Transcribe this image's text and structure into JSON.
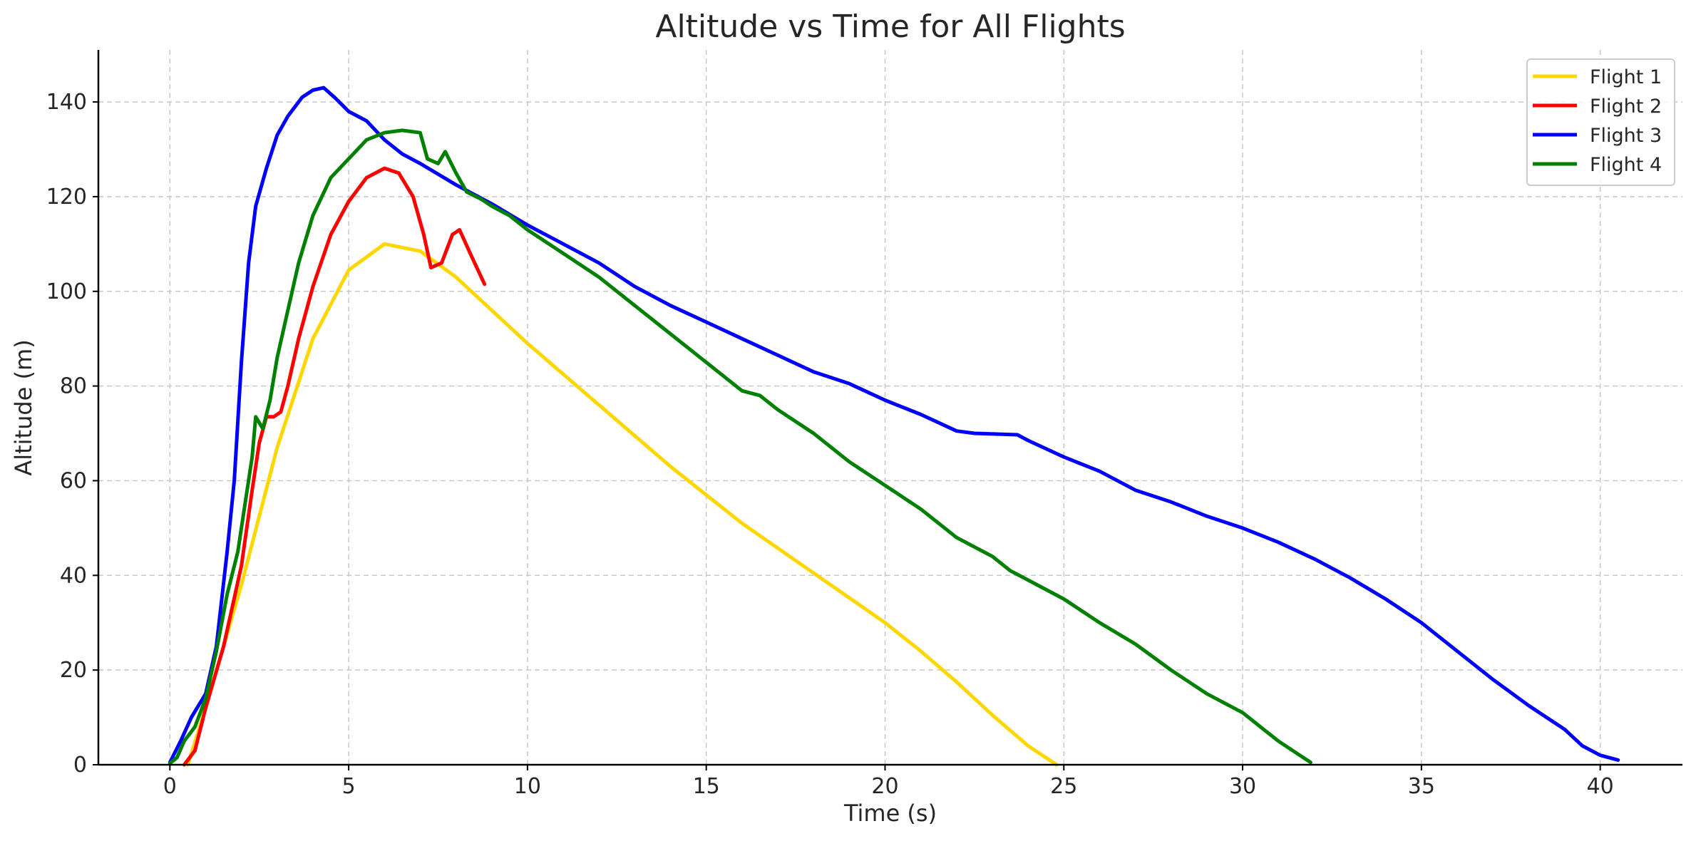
{
  "chart_data": {
    "type": "line",
    "title": "Altitude vs Time for All Flights",
    "xlabel": "Time (s)",
    "ylabel": "Altitude (m)",
    "xlim": [
      -2,
      42.3
    ],
    "ylim": [
      0,
      151
    ],
    "xticks": [
      0,
      5,
      10,
      15,
      20,
      25,
      30,
      35,
      40
    ],
    "yticks": [
      0,
      20,
      40,
      60,
      80,
      100,
      120,
      140
    ],
    "grid": true,
    "legend_position": "top-right",
    "series": [
      {
        "name": "Flight 1",
        "color": "#FFD700",
        "points": [
          [
            0.5,
            0
          ],
          [
            1,
            12
          ],
          [
            2,
            38
          ],
          [
            3,
            67
          ],
          [
            4,
            90
          ],
          [
            5,
            104.5
          ],
          [
            6,
            110
          ],
          [
            7,
            108.5
          ],
          [
            8,
            103
          ],
          [
            9,
            96
          ],
          [
            10,
            89
          ],
          [
            12,
            76
          ],
          [
            14,
            63
          ],
          [
            16,
            51
          ],
          [
            18,
            40.5
          ],
          [
            20,
            30
          ],
          [
            21,
            24
          ],
          [
            22,
            17.5
          ],
          [
            23,
            10.5
          ],
          [
            24,
            4
          ],
          [
            24.8,
            0
          ]
        ]
      },
      {
        "name": "Flight 2",
        "color": "#FF0000",
        "points": [
          [
            0.4,
            0
          ],
          [
            0.7,
            3
          ],
          [
            1,
            12
          ],
          [
            1.5,
            25
          ],
          [
            2,
            42
          ],
          [
            2.3,
            58
          ],
          [
            2.5,
            68
          ],
          [
            2.7,
            73.5
          ],
          [
            2.9,
            73.5
          ],
          [
            3.1,
            74.5
          ],
          [
            3.3,
            80
          ],
          [
            3.6,
            90
          ],
          [
            4,
            101
          ],
          [
            4.5,
            112
          ],
          [
            5,
            119
          ],
          [
            5.5,
            124
          ],
          [
            6,
            126
          ],
          [
            6.4,
            125
          ],
          [
            6.8,
            120
          ],
          [
            7.1,
            112
          ],
          [
            7.3,
            105
          ],
          [
            7.6,
            106
          ],
          [
            7.9,
            112
          ],
          [
            8.1,
            113
          ],
          [
            8.4,
            108
          ],
          [
            8.8,
            101.5
          ]
        ]
      },
      {
        "name": "Flight 3",
        "color": "#0000FF",
        "points": [
          [
            0,
            0.5
          ],
          [
            0.3,
            5
          ],
          [
            0.6,
            10
          ],
          [
            1,
            15
          ],
          [
            1.3,
            25
          ],
          [
            1.6,
            45
          ],
          [
            1.8,
            60
          ],
          [
            2,
            85
          ],
          [
            2.2,
            106
          ],
          [
            2.4,
            118
          ],
          [
            2.7,
            126
          ],
          [
            3,
            133
          ],
          [
            3.3,
            137
          ],
          [
            3.7,
            141
          ],
          [
            4,
            142.5
          ],
          [
            4.3,
            143
          ],
          [
            4.6,
            141
          ],
          [
            5,
            138
          ],
          [
            5.5,
            136
          ],
          [
            6,
            132
          ],
          [
            6.5,
            129
          ],
          [
            7,
            127
          ],
          [
            8,
            122.5
          ],
          [
            9,
            118.5
          ],
          [
            10,
            114
          ],
          [
            11,
            110
          ],
          [
            12,
            106
          ],
          [
            13,
            101
          ],
          [
            14,
            97
          ],
          [
            15,
            93.5
          ],
          [
            16,
            90
          ],
          [
            17,
            86.5
          ],
          [
            18,
            83
          ],
          [
            19,
            80.5
          ],
          [
            20,
            77
          ],
          [
            21,
            74
          ],
          [
            22,
            70.5
          ],
          [
            22.5,
            70
          ],
          [
            23.7,
            69.7
          ],
          [
            24,
            68.5
          ],
          [
            25,
            65
          ],
          [
            26,
            62
          ],
          [
            27,
            58
          ],
          [
            28,
            55.5
          ],
          [
            29,
            52.5
          ],
          [
            30,
            50
          ],
          [
            31,
            47
          ],
          [
            32,
            43.5
          ],
          [
            33,
            39.5
          ],
          [
            34,
            35
          ],
          [
            35,
            30
          ],
          [
            36,
            24
          ],
          [
            37,
            18
          ],
          [
            38,
            12.5
          ],
          [
            39,
            7.5
          ],
          [
            39.5,
            4
          ],
          [
            40,
            2
          ],
          [
            40.5,
            1
          ]
        ]
      },
      {
        "name": "Flight 4",
        "color": "#008000",
        "points": [
          [
            0,
            0.3
          ],
          [
            0.2,
            1.5
          ],
          [
            0.4,
            5
          ],
          [
            0.7,
            8
          ],
          [
            1,
            14
          ],
          [
            1.3,
            24
          ],
          [
            1.6,
            36
          ],
          [
            1.9,
            45
          ],
          [
            2.1,
            55
          ],
          [
            2.3,
            65
          ],
          [
            2.4,
            73.5
          ],
          [
            2.6,
            71
          ],
          [
            2.8,
            77
          ],
          [
            3,
            86
          ],
          [
            3.3,
            96
          ],
          [
            3.6,
            106
          ],
          [
            4,
            116
          ],
          [
            4.5,
            124
          ],
          [
            5,
            128
          ],
          [
            5.5,
            132
          ],
          [
            6,
            133.5
          ],
          [
            6.5,
            134
          ],
          [
            7,
            133.5
          ],
          [
            7.2,
            128
          ],
          [
            7.5,
            127
          ],
          [
            7.7,
            129.5
          ],
          [
            8,
            125
          ],
          [
            8.3,
            121
          ],
          [
            8.7,
            119.5
          ],
          [
            9,
            118
          ],
          [
            9.5,
            116
          ],
          [
            10,
            113
          ],
          [
            11,
            108
          ],
          [
            12,
            103
          ],
          [
            13,
            97
          ],
          [
            14,
            91
          ],
          [
            15,
            85
          ],
          [
            16,
            79
          ],
          [
            16.5,
            78
          ],
          [
            17,
            75
          ],
          [
            18,
            70
          ],
          [
            19,
            64
          ],
          [
            20,
            59
          ],
          [
            21,
            54
          ],
          [
            22,
            48
          ],
          [
            23,
            44
          ],
          [
            23.5,
            41
          ],
          [
            24,
            39
          ],
          [
            25,
            35
          ],
          [
            26,
            30
          ],
          [
            27,
            25.5
          ],
          [
            28,
            20
          ],
          [
            29,
            15
          ],
          [
            30,
            11
          ],
          [
            30.5,
            8
          ],
          [
            31,
            5
          ],
          [
            31.5,
            2.5
          ],
          [
            31.9,
            0.5
          ]
        ]
      }
    ]
  }
}
